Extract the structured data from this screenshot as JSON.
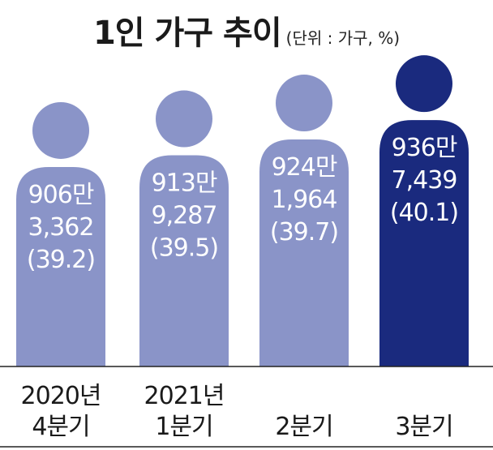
{
  "title": "1인 가구 추이",
  "unit_note": "(단위 : 가구, %)",
  "chart_data": {
    "type": "bar",
    "categories": [
      [
        "2020년",
        "4분기"
      ],
      [
        "2021년",
        "1분기"
      ],
      [
        "",
        "2분기"
      ],
      [
        "",
        "3분기"
      ]
    ],
    "values": [
      9063362,
      9139287,
      9241964,
      9367439
    ],
    "series": [
      {
        "values": [
          9063362,
          9139287,
          9241964,
          9367439
        ]
      }
    ],
    "value_labels": [
      [
        "906만",
        "3,362",
        "(39.2)"
      ],
      [
        "913만",
        "9,287",
        "(39.5)"
      ],
      [
        "924만",
        "1,964",
        "(39.7)"
      ],
      [
        "936만",
        "7,439",
        "(40.1)"
      ]
    ],
    "shares_percent": [
      39.2,
      39.5,
      39.7,
      40.1
    ],
    "bar_colors": [
      "#8a94c8",
      "#8a94c8",
      "#8a94c8",
      "#1a2a7e"
    ],
    "category_color": "#1a1a1a",
    "label_color": "#ffffff",
    "grid": false,
    "legend": "none"
  }
}
